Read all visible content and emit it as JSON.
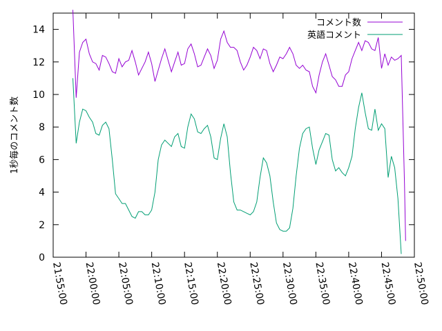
{
  "chart_data": {
    "type": "line",
    "title": "",
    "xlabel": "",
    "ylabel": "1秒毎のコメント数",
    "xlim": [
      "21:55:00",
      "22:50:00"
    ],
    "ylim": [
      0,
      15
    ],
    "xticks": [
      "21:55:00",
      "22:00:00",
      "22:05:00",
      "22:10:00",
      "22:15:00",
      "22:20:00",
      "22:25:00",
      "22:30:00",
      "22:35:00",
      "22:40:00",
      "22:45:00",
      "22:50:00"
    ],
    "yticks": [
      0,
      2,
      4,
      6,
      8,
      10,
      12,
      14
    ],
    "grid": false,
    "legend_position": "top-right",
    "series": [
      {
        "name": "コメント数",
        "color": "#9400d3",
        "points": [
          [
            "21:58:00",
            15.2
          ],
          [
            "21:58:30",
            9.8
          ],
          [
            "21:59:00",
            12.6
          ],
          [
            "21:59:30",
            13.2
          ],
          [
            "22:00:00",
            13.4
          ],
          [
            "22:00:30",
            12.5
          ],
          [
            "22:01:00",
            12.0
          ],
          [
            "22:01:30",
            11.9
          ],
          [
            "22:02:00",
            11.5
          ],
          [
            "22:02:30",
            12.4
          ],
          [
            "22:03:00",
            12.3
          ],
          [
            "22:03:30",
            11.9
          ],
          [
            "22:04:00",
            11.4
          ],
          [
            "22:04:30",
            11.3
          ],
          [
            "22:05:00",
            12.2
          ],
          [
            "22:05:30",
            11.7
          ],
          [
            "22:06:00",
            12.0
          ],
          [
            "22:06:30",
            12.1
          ],
          [
            "22:07:00",
            12.7
          ],
          [
            "22:07:30",
            12.0
          ],
          [
            "22:08:00",
            11.2
          ],
          [
            "22:08:30",
            11.6
          ],
          [
            "22:09:00",
            12.0
          ],
          [
            "22:09:30",
            12.6
          ],
          [
            "22:10:00",
            11.9
          ],
          [
            "22:10:30",
            10.8
          ],
          [
            "22:11:00",
            11.5
          ],
          [
            "22:11:30",
            12.2
          ],
          [
            "22:12:00",
            12.8
          ],
          [
            "22:12:30",
            12.1
          ],
          [
            "22:13:00",
            11.4
          ],
          [
            "22:13:30",
            12.0
          ],
          [
            "22:14:00",
            12.6
          ],
          [
            "22:14:30",
            11.8
          ],
          [
            "22:15:00",
            11.9
          ],
          [
            "22:15:30",
            12.8
          ],
          [
            "22:16:00",
            13.1
          ],
          [
            "22:16:30",
            12.5
          ],
          [
            "22:17:00",
            11.7
          ],
          [
            "22:17:30",
            11.8
          ],
          [
            "22:18:00",
            12.3
          ],
          [
            "22:18:30",
            12.8
          ],
          [
            "22:19:00",
            12.4
          ],
          [
            "22:19:30",
            11.6
          ],
          [
            "22:20:00",
            12.1
          ],
          [
            "22:20:30",
            13.4
          ],
          [
            "22:21:00",
            13.9
          ],
          [
            "22:21:30",
            13.2
          ],
          [
            "22:22:00",
            12.9
          ],
          [
            "22:22:30",
            12.9
          ],
          [
            "22:23:00",
            12.7
          ],
          [
            "22:23:30",
            12.0
          ],
          [
            "22:24:00",
            11.5
          ],
          [
            "22:24:30",
            11.8
          ],
          [
            "22:25:00",
            12.3
          ],
          [
            "22:25:30",
            12.9
          ],
          [
            "22:26:00",
            12.7
          ],
          [
            "22:26:30",
            12.2
          ],
          [
            "22:27:00",
            12.8
          ],
          [
            "22:27:30",
            12.7
          ],
          [
            "22:28:00",
            11.9
          ],
          [
            "22:28:30",
            11.4
          ],
          [
            "22:29:00",
            11.8
          ],
          [
            "22:29:30",
            12.3
          ],
          [
            "22:30:00",
            12.2
          ],
          [
            "22:30:30",
            12.5
          ],
          [
            "22:31:00",
            12.9
          ],
          [
            "22:31:30",
            12.5
          ],
          [
            "22:32:00",
            11.8
          ],
          [
            "22:32:30",
            11.6
          ],
          [
            "22:33:00",
            11.8
          ],
          [
            "22:33:30",
            11.5
          ],
          [
            "22:34:00",
            11.4
          ],
          [
            "22:34:30",
            10.5
          ],
          [
            "22:35:00",
            10.1
          ],
          [
            "22:35:30",
            11.2
          ],
          [
            "22:36:00",
            12.0
          ],
          [
            "22:36:30",
            12.5
          ],
          [
            "22:37:00",
            11.8
          ],
          [
            "22:37:30",
            11.1
          ],
          [
            "22:38:00",
            10.9
          ],
          [
            "22:38:30",
            10.5
          ],
          [
            "22:39:00",
            10.5
          ],
          [
            "22:39:30",
            11.2
          ],
          [
            "22:40:00",
            11.4
          ],
          [
            "22:40:30",
            12.2
          ],
          [
            "22:41:00",
            12.7
          ],
          [
            "22:41:30",
            13.2
          ],
          [
            "22:42:00",
            12.7
          ],
          [
            "22:42:30",
            13.3
          ],
          [
            "22:43:00",
            13.2
          ],
          [
            "22:43:30",
            12.8
          ],
          [
            "22:44:00",
            12.7
          ],
          [
            "22:44:30",
            13.5
          ],
          [
            "22:45:00",
            11.6
          ],
          [
            "22:45:30",
            12.5
          ],
          [
            "22:46:00",
            11.8
          ],
          [
            "22:46:30",
            12.3
          ],
          [
            "22:47:00",
            12.1
          ],
          [
            "22:47:30",
            12.2
          ],
          [
            "22:48:00",
            12.4
          ],
          [
            "22:48:30",
            4.5
          ],
          [
            "22:48:40",
            1.0
          ]
        ]
      },
      {
        "name": "英語コメント",
        "color": "#009e73",
        "points": [
          [
            "21:58:00",
            11.0
          ],
          [
            "21:58:30",
            7.0
          ],
          [
            "21:59:00",
            8.3
          ],
          [
            "21:59:30",
            9.1
          ],
          [
            "22:00:00",
            9.0
          ],
          [
            "22:00:30",
            8.6
          ],
          [
            "22:01:00",
            8.3
          ],
          [
            "22:01:30",
            7.6
          ],
          [
            "22:02:00",
            7.5
          ],
          [
            "22:02:30",
            8.1
          ],
          [
            "22:03:00",
            8.3
          ],
          [
            "22:03:30",
            7.9
          ],
          [
            "22:04:00",
            6.0
          ],
          [
            "22:04:30",
            3.9
          ],
          [
            "22:05:00",
            3.6
          ],
          [
            "22:05:30",
            3.3
          ],
          [
            "22:06:00",
            3.3
          ],
          [
            "22:06:30",
            2.9
          ],
          [
            "22:07:00",
            2.5
          ],
          [
            "22:07:30",
            2.4
          ],
          [
            "22:08:00",
            2.8
          ],
          [
            "22:08:30",
            2.8
          ],
          [
            "22:09:00",
            2.6
          ],
          [
            "22:09:30",
            2.6
          ],
          [
            "22:10:00",
            2.9
          ],
          [
            "22:10:30",
            4.0
          ],
          [
            "22:11:00",
            6.0
          ],
          [
            "22:11:30",
            6.9
          ],
          [
            "22:12:00",
            7.2
          ],
          [
            "22:12:30",
            7.0
          ],
          [
            "22:13:00",
            6.8
          ],
          [
            "22:13:30",
            7.4
          ],
          [
            "22:14:00",
            7.6
          ],
          [
            "22:14:30",
            6.8
          ],
          [
            "22:15:00",
            6.7
          ],
          [
            "22:15:30",
            8.0
          ],
          [
            "22:16:00",
            8.8
          ],
          [
            "22:16:30",
            8.5
          ],
          [
            "22:17:00",
            7.7
          ],
          [
            "22:17:30",
            7.6
          ],
          [
            "22:18:00",
            7.9
          ],
          [
            "22:18:30",
            8.1
          ],
          [
            "22:19:00",
            7.4
          ],
          [
            "22:19:30",
            6.1
          ],
          [
            "22:20:00",
            6.0
          ],
          [
            "22:20:30",
            7.3
          ],
          [
            "22:21:00",
            8.2
          ],
          [
            "22:21:30",
            7.4
          ],
          [
            "22:22:00",
            5.2
          ],
          [
            "22:22:30",
            3.4
          ],
          [
            "22:23:00",
            2.9
          ],
          [
            "22:23:30",
            2.9
          ],
          [
            "22:24:00",
            2.8
          ],
          [
            "22:24:30",
            2.7
          ],
          [
            "22:25:00",
            2.6
          ],
          [
            "22:25:30",
            2.8
          ],
          [
            "22:26:00",
            3.4
          ],
          [
            "22:26:30",
            4.9
          ],
          [
            "22:27:00",
            6.1
          ],
          [
            "22:27:30",
            5.8
          ],
          [
            "22:28:00",
            5.0
          ],
          [
            "22:28:30",
            3.4
          ],
          [
            "22:29:00",
            2.1
          ],
          [
            "22:29:30",
            1.7
          ],
          [
            "22:30:00",
            1.6
          ],
          [
            "22:30:30",
            1.6
          ],
          [
            "22:31:00",
            1.8
          ],
          [
            "22:31:30",
            3.0
          ],
          [
            "22:32:00",
            5.0
          ],
          [
            "22:32:30",
            6.7
          ],
          [
            "22:33:00",
            7.6
          ],
          [
            "22:33:30",
            7.9
          ],
          [
            "22:34:00",
            8.0
          ],
          [
            "22:34:30",
            6.7
          ],
          [
            "22:35:00",
            5.7
          ],
          [
            "22:35:30",
            6.6
          ],
          [
            "22:36:00",
            7.1
          ],
          [
            "22:36:30",
            7.6
          ],
          [
            "22:37:00",
            7.5
          ],
          [
            "22:37:30",
            6.0
          ],
          [
            "22:38:00",
            5.3
          ],
          [
            "22:38:30",
            5.5
          ],
          [
            "22:39:00",
            5.2
          ],
          [
            "22:39:30",
            5.0
          ],
          [
            "22:40:00",
            5.5
          ],
          [
            "22:40:30",
            6.2
          ],
          [
            "22:41:00",
            7.9
          ],
          [
            "22:41:30",
            9.2
          ],
          [
            "22:42:00",
            10.1
          ],
          [
            "22:42:30",
            8.9
          ],
          [
            "22:43:00",
            7.9
          ],
          [
            "22:43:30",
            7.8
          ],
          [
            "22:44:00",
            9.1
          ],
          [
            "22:44:30",
            7.8
          ],
          [
            "22:45:00",
            8.2
          ],
          [
            "22:45:30",
            7.9
          ],
          [
            "22:46:00",
            4.9
          ],
          [
            "22:46:30",
            6.2
          ],
          [
            "22:47:00",
            5.5
          ],
          [
            "22:47:30",
            3.6
          ],
          [
            "22:48:00",
            0.2
          ]
        ]
      }
    ]
  }
}
